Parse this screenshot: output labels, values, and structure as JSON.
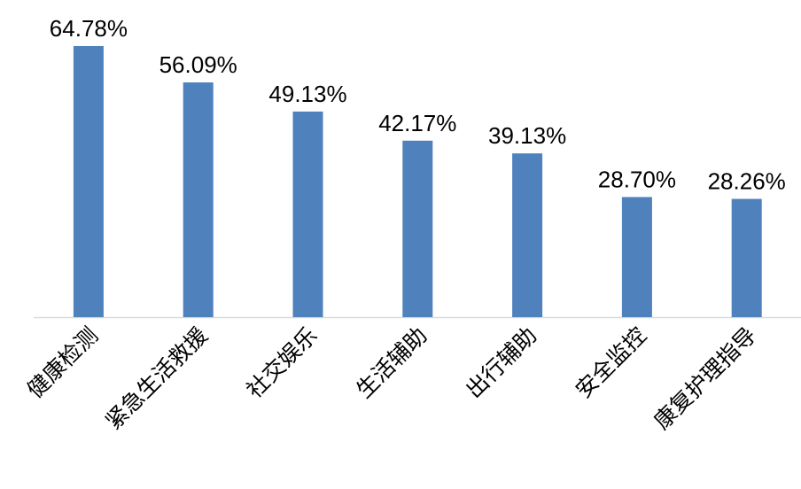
{
  "chart_data": {
    "type": "bar",
    "categories": [
      "健康检测",
      "紧急生活救援",
      "社交娱乐",
      "生活辅助",
      "出行辅助",
      "安全监控",
      "康复护理指导"
    ],
    "values": [
      64.78,
      56.09,
      49.13,
      42.17,
      39.13,
      28.7,
      28.26
    ],
    "value_labels": [
      "64.78%",
      "56.09%",
      "49.13%",
      "42.17%",
      "39.13%",
      "28.70%",
      "28.26%"
    ],
    "color": "#4f81bd"
  }
}
